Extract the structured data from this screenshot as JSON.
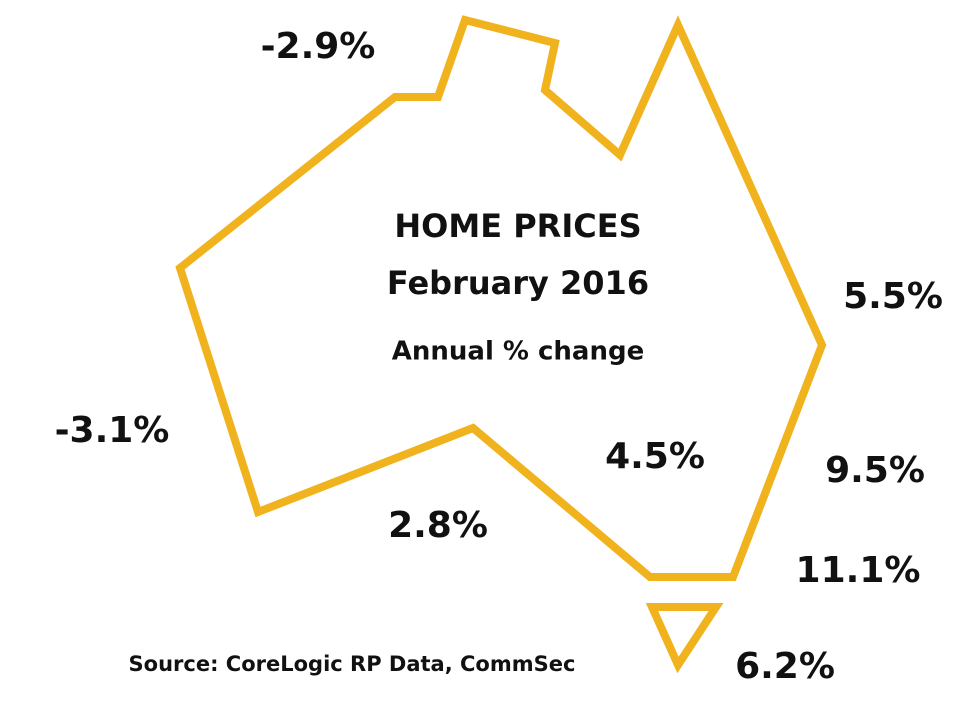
{
  "header": {
    "title": "HOME PRICES",
    "date": "February 2016",
    "subtitle": "Annual % change"
  },
  "regions": [
    "-2.9%",
    "5.5%",
    "-3.1%",
    "4.5%",
    "9.5%",
    "2.8%",
    "11.1%",
    "6.2%"
  ],
  "source": "Source: CoreLogic RP Data, CommSec"
}
